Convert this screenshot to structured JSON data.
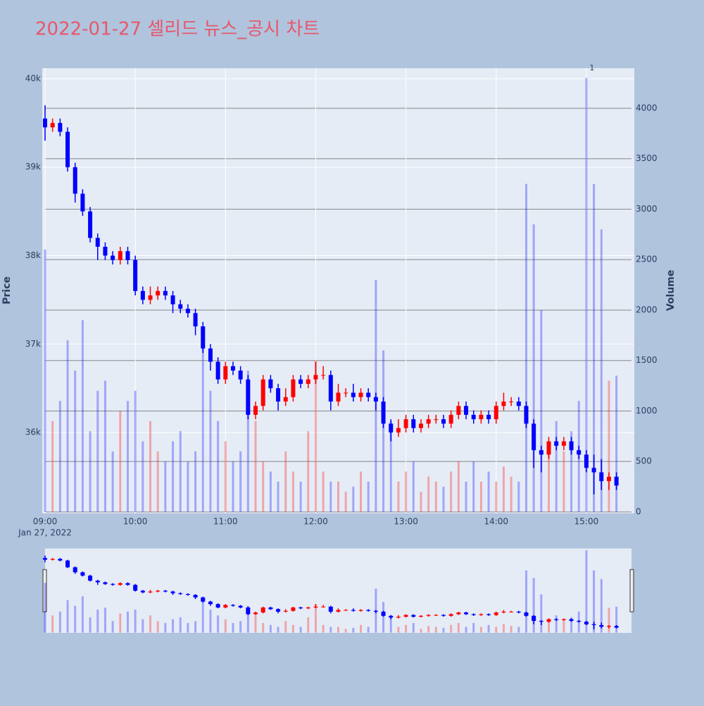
{
  "chart_data": {
    "type": "candlestick",
    "title": "2022-01-27 셀리드 뉴스_공시 차트",
    "y_label": "Price",
    "y2_label": "Volume",
    "x_sublabel": "Jan 27, 2022",
    "increasing_color": "#ff0000",
    "decreasing_color": "#0000ff",
    "x": [
      "09:00",
      "09:05",
      "09:10",
      "09:15",
      "09:20",
      "09:25",
      "09:30",
      "09:35",
      "09:40",
      "09:45",
      "09:50",
      "09:55",
      "10:00",
      "10:05",
      "10:10",
      "10:15",
      "10:20",
      "10:25",
      "10:30",
      "10:35",
      "10:40",
      "10:45",
      "10:50",
      "10:55",
      "11:00",
      "11:05",
      "11:10",
      "11:15",
      "11:20",
      "11:25",
      "11:30",
      "11:35",
      "11:40",
      "11:45",
      "11:50",
      "11:55",
      "12:00",
      "12:05",
      "12:10",
      "12:15",
      "12:20",
      "12:25",
      "12:30",
      "12:35",
      "12:40",
      "12:45",
      "12:50",
      "12:55",
      "13:00",
      "13:05",
      "13:10",
      "13:15",
      "13:20",
      "13:25",
      "13:30",
      "13:35",
      "13:40",
      "13:45",
      "13:50",
      "13:55",
      "14:00",
      "14:05",
      "14:10",
      "14:15",
      "14:20",
      "14:25",
      "14:30",
      "14:35",
      "14:40",
      "14:45",
      "14:50",
      "14:55",
      "15:00",
      "15:05",
      "15:10",
      "15:15",
      "15:20"
    ],
    "open": [
      39550,
      39450,
      39500,
      39400,
      39000,
      38700,
      38500,
      38200,
      38100,
      38000,
      37950,
      38050,
      37950,
      37600,
      37500,
      37550,
      37600,
      37550,
      37450,
      37400,
      37350,
      37200,
      36950,
      36800,
      36600,
      36750,
      36700,
      36600,
      36200,
      36300,
      36600,
      36500,
      36350,
      36400,
      36600,
      36550,
      36600,
      36650,
      36650,
      36350,
      36450,
      36450,
      36400,
      36450,
      36400,
      36350,
      36100,
      36000,
      36050,
      36150,
      36050,
      36100,
      36150,
      36150,
      36100,
      36200,
      36300,
      36200,
      36150,
      36200,
      36150,
      36300,
      36350,
      36350,
      36300,
      36100,
      35800,
      35750,
      35900,
      35850,
      35900,
      35800,
      35750,
      35600,
      35550,
      35450,
      35500
    ],
    "high": [
      39700,
      39550,
      39550,
      39450,
      39050,
      38750,
      38550,
      38250,
      38150,
      38050,
      38100,
      38100,
      38000,
      37650,
      37650,
      37650,
      37650,
      37600,
      37500,
      37450,
      37400,
      37250,
      37000,
      36850,
      36800,
      36800,
      36750,
      36650,
      36350,
      36650,
      36650,
      36550,
      36500,
      36650,
      36650,
      36650,
      36800,
      36750,
      36700,
      36550,
      36500,
      36550,
      36500,
      36500,
      36450,
      36400,
      36150,
      36150,
      36200,
      36200,
      36150,
      36200,
      36200,
      36200,
      36250,
      36350,
      36350,
      36250,
      36250,
      36250,
      36350,
      36450,
      36400,
      36400,
      36350,
      36150,
      35850,
      35950,
      35950,
      35950,
      35950,
      35850,
      35800,
      35750,
      35700,
      35550,
      35550
    ],
    "low": [
      39300,
      39400,
      39350,
      38950,
      38600,
      38450,
      38150,
      37950,
      37950,
      37900,
      37900,
      37900,
      37550,
      37450,
      37450,
      37500,
      37500,
      37350,
      37350,
      37300,
      37100,
      36900,
      36700,
      36550,
      36550,
      36650,
      36550,
      36150,
      36150,
      36250,
      36450,
      36250,
      36300,
      36350,
      36500,
      36500,
      36550,
      36600,
      36250,
      36300,
      36400,
      36350,
      36350,
      36350,
      36250,
      36050,
      35900,
      35950,
      36000,
      36000,
      36000,
      36050,
      36100,
      36050,
      36050,
      36150,
      36150,
      36100,
      36100,
      36100,
      36100,
      36250,
      36300,
      36250,
      36050,
      35600,
      35550,
      35700,
      35800,
      35800,
      35750,
      35700,
      35550,
      35300,
      35350,
      35350,
      35350
    ],
    "close": [
      39450,
      39500,
      39400,
      39000,
      38700,
      38500,
      38200,
      38100,
      38000,
      37950,
      38050,
      37950,
      37600,
      37500,
      37550,
      37600,
      37550,
      37450,
      37400,
      37350,
      37200,
      36950,
      36800,
      36600,
      36750,
      36700,
      36600,
      36200,
      36300,
      36600,
      36500,
      36350,
      36400,
      36600,
      36550,
      36600,
      36650,
      36650,
      36350,
      36450,
      36450,
      36400,
      36450,
      36400,
      36350,
      36100,
      36000,
      36050,
      36150,
      36050,
      36100,
      36150,
      36150,
      36100,
      36200,
      36300,
      36200,
      36150,
      36200,
      36150,
      36300,
      36350,
      36350,
      36300,
      36100,
      35800,
      35750,
      35900,
      35850,
      35900,
      35800,
      35750,
      35600,
      35550,
      35450,
      35500,
      35400
    ],
    "volume": [
      2600,
      900,
      1100,
      1700,
      1400,
      1900,
      800,
      1200,
      1300,
      600,
      1000,
      1100,
      1200,
      700,
      900,
      600,
      500,
      700,
      800,
      500,
      600,
      1700,
      1200,
      900,
      700,
      500,
      600,
      1400,
      900,
      500,
      400,
      300,
      600,
      400,
      300,
      800,
      1500,
      400,
      300,
      300,
      200,
      250,
      400,
      300,
      2300,
      1600,
      900,
      300,
      400,
      500,
      200,
      350,
      300,
      250,
      400,
      500,
      300,
      500,
      300,
      400,
      300,
      450,
      350,
      300,
      3250,
      2850,
      2000,
      700,
      900,
      600,
      800,
      1100,
      4300,
      3250,
      2800,
      1300,
      1350
    ],
    "xlim": [
      "09:00",
      "15:30"
    ],
    "xticks": [
      "09:00",
      "10:00",
      "11:00",
      "12:00",
      "13:00",
      "14:00",
      "15:00"
    ],
    "ylim": [
      35086,
      40119
    ],
    "yticks": [
      {
        "value": 36000,
        "label": "36k"
      },
      {
        "value": 37000,
        "label": "37k"
      },
      {
        "value": 38000,
        "label": "38k"
      },
      {
        "value": 39000,
        "label": "39k"
      },
      {
        "value": 40000,
        "label": "40k"
      }
    ],
    "y2lim": [
      -14,
      4397
    ],
    "y2ticks": [
      0,
      500,
      1000,
      1500,
      2000,
      2500,
      3000,
      3500,
      4000
    ],
    "annotations": [
      {
        "text": "1",
        "x": "15:00",
        "y": 4300
      }
    ],
    "rangeslider": true
  }
}
